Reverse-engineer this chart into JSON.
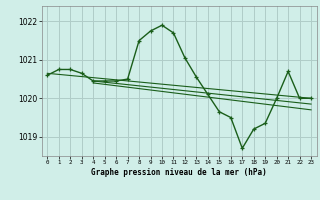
{
  "title": "Graphe pression niveau de la mer (hPa)",
  "background_color": "#d0eee8",
  "grid_color": "#b0ccc8",
  "line_color": "#1a5e1a",
  "ylim": [
    1018.5,
    1022.4
  ],
  "yticks": [
    1019,
    1020,
    1021,
    1022
  ],
  "xlim": [
    -0.5,
    23.5
  ],
  "xticks": [
    0,
    1,
    2,
    3,
    4,
    5,
    6,
    7,
    8,
    9,
    10,
    11,
    12,
    13,
    14,
    15,
    16,
    17,
    18,
    19,
    20,
    21,
    22,
    23
  ],
  "series1": [
    1020.6,
    1020.75,
    1020.75,
    1020.65,
    1020.45,
    1020.45,
    1020.45,
    1020.5,
    1021.5,
    1021.75,
    1021.9,
    1021.7,
    1021.05,
    1020.55,
    1020.1,
    1019.65,
    1019.5,
    1018.7,
    1019.2,
    1019.35,
    1020.0,
    1020.7,
    1020.0,
    1020.0
  ],
  "trend1_x": [
    0,
    23
  ],
  "trend1_y": [
    1020.65,
    1020.0
  ],
  "trend2_x": [
    4,
    23
  ],
  "trend2_y": [
    1020.45,
    1019.85
  ],
  "trend3_x": [
    4,
    23
  ],
  "trend3_y": [
    1020.4,
    1019.7
  ]
}
